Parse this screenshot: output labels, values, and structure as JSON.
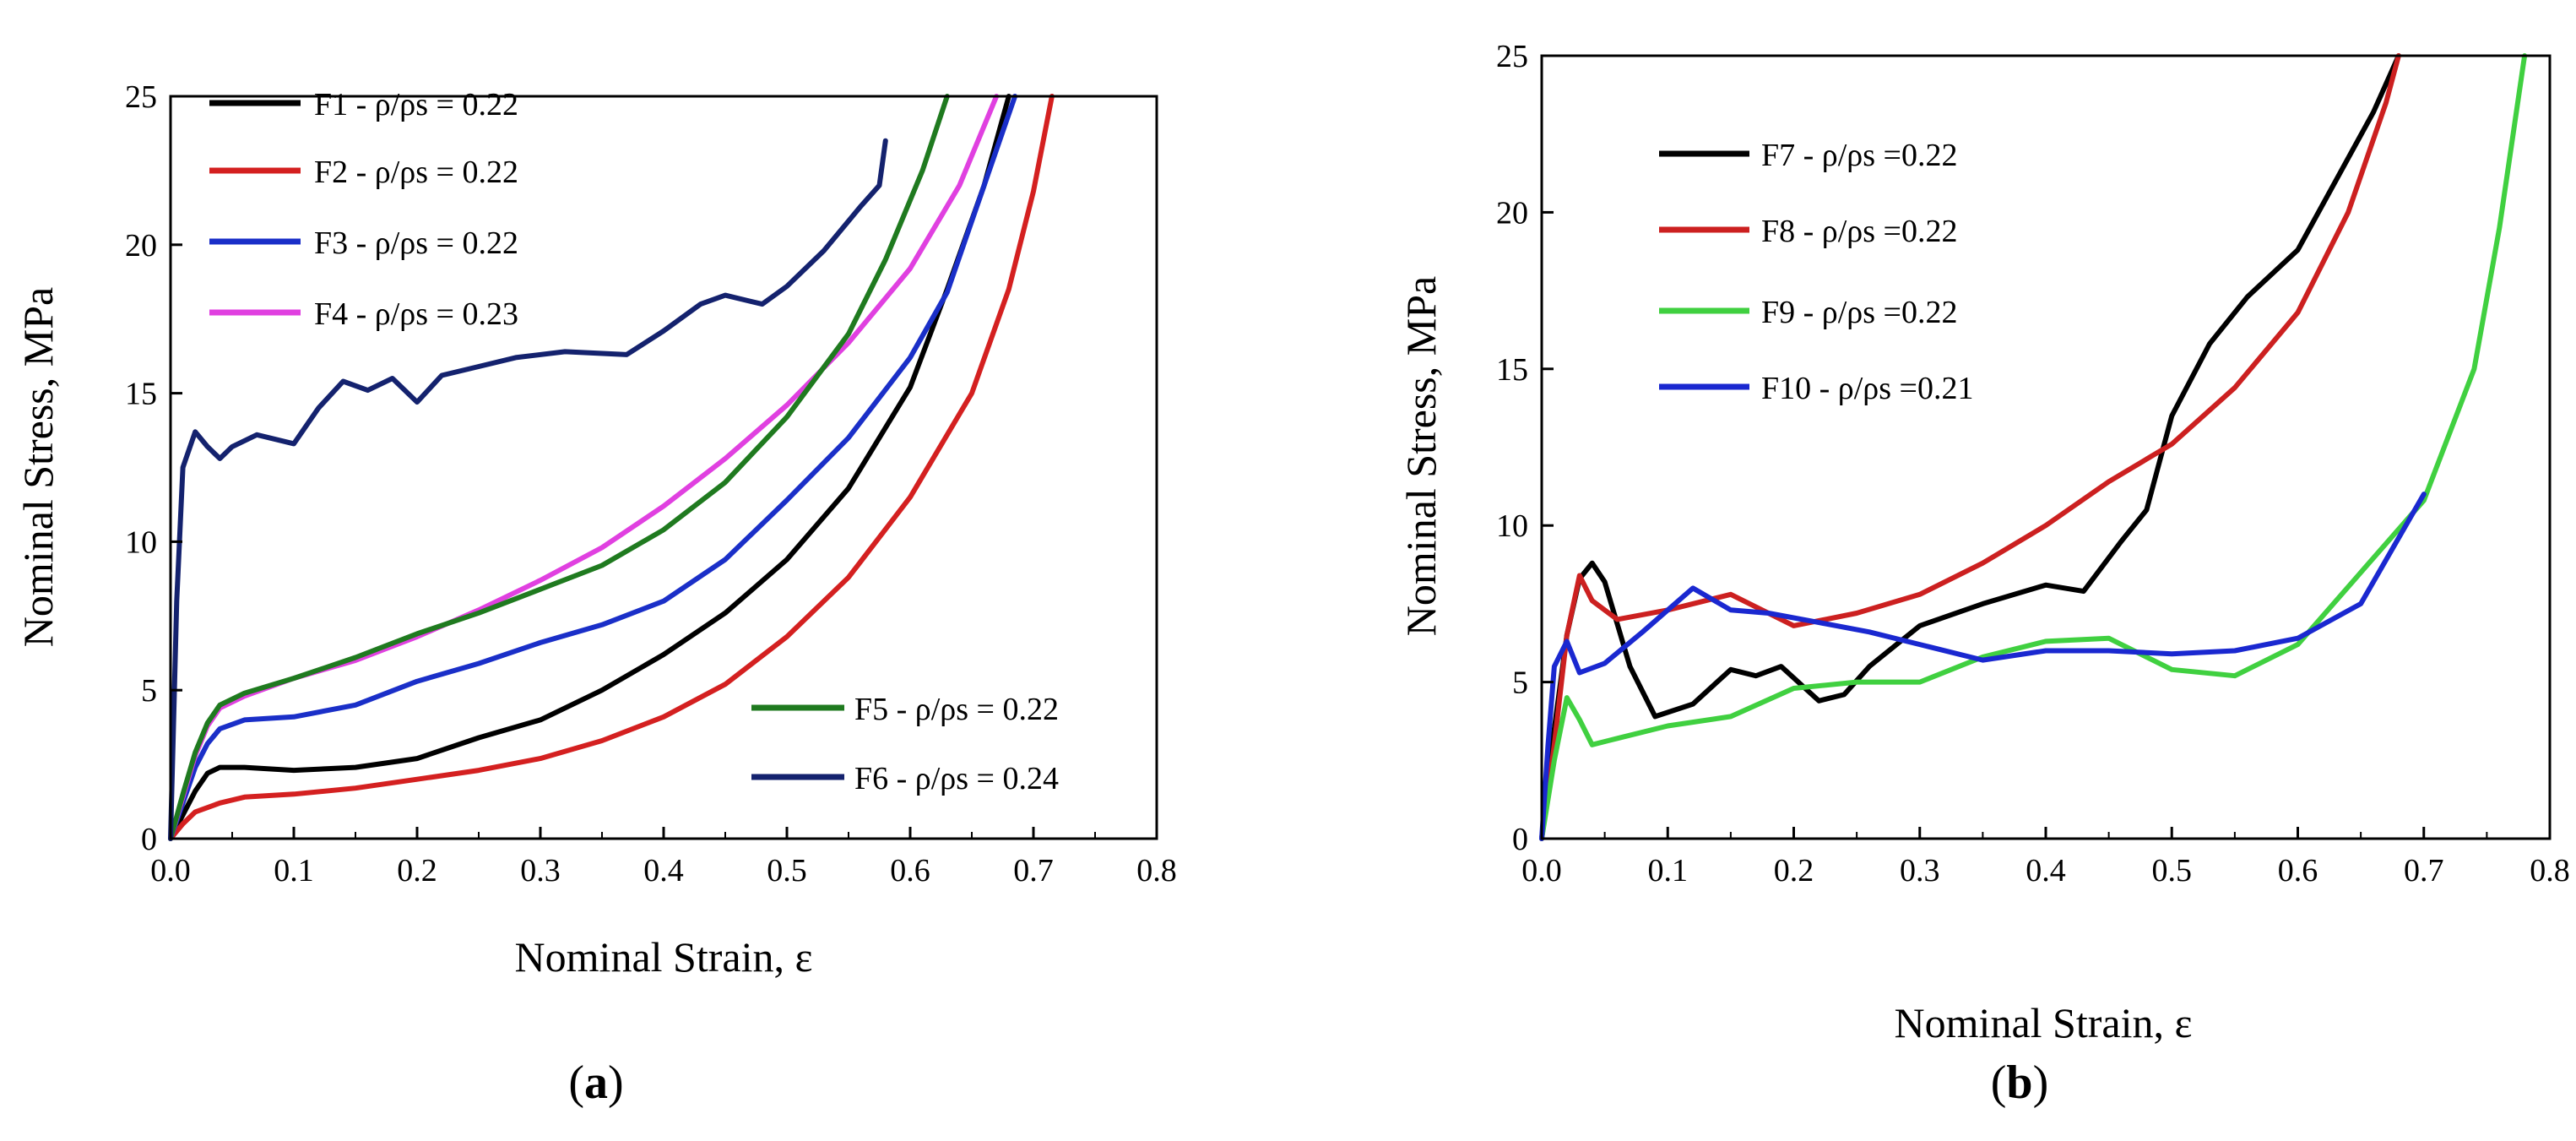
{
  "chart_data": [
    {
      "type": "line",
      "panel_label": "a",
      "xlabel": "Nominal Strain, ε",
      "ylabel": "Nominal Stress, MPa",
      "xlim": [
        0,
        0.8
      ],
      "ylim": [
        0,
        25
      ],
      "xticks": [
        "0.0",
        "0.1",
        "0.2",
        "0.3",
        "0.4",
        "0.5",
        "0.6",
        "0.7",
        "0.8"
      ],
      "yticks": [
        "0",
        "5",
        "10",
        "15",
        "20",
        "25"
      ],
      "series": [
        {
          "name": "F1 - ρ/ρs = 0.22",
          "color": "#000000",
          "legend": "upper",
          "points": [
            [
              0,
              0
            ],
            [
              0.01,
              0.8
            ],
            [
              0.02,
              1.6
            ],
            [
              0.03,
              2.2
            ],
            [
              0.04,
              2.4
            ],
            [
              0.06,
              2.4
            ],
            [
              0.1,
              2.3
            ],
            [
              0.15,
              2.4
            ],
            [
              0.2,
              2.7
            ],
            [
              0.25,
              3.4
            ],
            [
              0.3,
              4.0
            ],
            [
              0.35,
              5.0
            ],
            [
              0.4,
              6.2
            ],
            [
              0.45,
              7.6
            ],
            [
              0.5,
              9.4
            ],
            [
              0.55,
              11.8
            ],
            [
              0.6,
              15.2
            ],
            [
              0.63,
              18.5
            ],
            [
              0.66,
              22.0
            ],
            [
              0.68,
              25.0
            ]
          ]
        },
        {
          "name": "F2 - ρ/ρs = 0.22",
          "color": "#d42020",
          "legend": "upper",
          "points": [
            [
              0,
              0
            ],
            [
              0.01,
              0.5
            ],
            [
              0.02,
              0.9
            ],
            [
              0.04,
              1.2
            ],
            [
              0.06,
              1.4
            ],
            [
              0.1,
              1.5
            ],
            [
              0.15,
              1.7
            ],
            [
              0.2,
              2.0
            ],
            [
              0.25,
              2.3
            ],
            [
              0.3,
              2.7
            ],
            [
              0.35,
              3.3
            ],
            [
              0.4,
              4.1
            ],
            [
              0.45,
              5.2
            ],
            [
              0.5,
              6.8
            ],
            [
              0.55,
              8.8
            ],
            [
              0.6,
              11.5
            ],
            [
              0.65,
              15.0
            ],
            [
              0.68,
              18.5
            ],
            [
              0.7,
              21.8
            ],
            [
              0.715,
              25.0
            ]
          ]
        },
        {
          "name": "F3 - ρ/ρs = 0.22",
          "color": "#1a2fc8",
          "legend": "upper",
          "points": [
            [
              0,
              0
            ],
            [
              0.01,
              1.2
            ],
            [
              0.02,
              2.4
            ],
            [
              0.03,
              3.2
            ],
            [
              0.04,
              3.7
            ],
            [
              0.06,
              4.0
            ],
            [
              0.1,
              4.1
            ],
            [
              0.15,
              4.5
            ],
            [
              0.2,
              5.3
            ],
            [
              0.25,
              5.9
            ],
            [
              0.3,
              6.6
            ],
            [
              0.35,
              7.2
            ],
            [
              0.4,
              8.0
            ],
            [
              0.45,
              9.4
            ],
            [
              0.5,
              11.4
            ],
            [
              0.55,
              13.5
            ],
            [
              0.6,
              16.2
            ],
            [
              0.63,
              18.4
            ],
            [
              0.66,
              22.0
            ],
            [
              0.685,
              25.0
            ]
          ]
        },
        {
          "name": "F4 - ρ/ρs = 0.23",
          "color": "#e040e0",
          "legend": "upper",
          "points": [
            [
              0,
              0
            ],
            [
              0.01,
              1.4
            ],
            [
              0.02,
              2.8
            ],
            [
              0.03,
              3.8
            ],
            [
              0.04,
              4.4
            ],
            [
              0.06,
              4.8
            ],
            [
              0.1,
              5.4
            ],
            [
              0.15,
              6.0
            ],
            [
              0.2,
              6.8
            ],
            [
              0.25,
              7.7
            ],
            [
              0.3,
              8.7
            ],
            [
              0.35,
              9.8
            ],
            [
              0.4,
              11.2
            ],
            [
              0.45,
              12.8
            ],
            [
              0.5,
              14.6
            ],
            [
              0.55,
              16.7
            ],
            [
              0.6,
              19.2
            ],
            [
              0.64,
              22.0
            ],
            [
              0.67,
              25.0
            ]
          ]
        },
        {
          "name": "F5 - ρ/ρs = 0.22",
          "color": "#1f7a1f",
          "legend": "lower",
          "points": [
            [
              0,
              0
            ],
            [
              0.01,
              1.5
            ],
            [
              0.02,
              2.9
            ],
            [
              0.03,
              3.9
            ],
            [
              0.04,
              4.5
            ],
            [
              0.06,
              4.9
            ],
            [
              0.1,
              5.4
            ],
            [
              0.15,
              6.1
            ],
            [
              0.2,
              6.9
            ],
            [
              0.25,
              7.6
            ],
            [
              0.3,
              8.4
            ],
            [
              0.35,
              9.2
            ],
            [
              0.4,
              10.4
            ],
            [
              0.45,
              12.0
            ],
            [
              0.5,
              14.2
            ],
            [
              0.55,
              17.0
            ],
            [
              0.58,
              19.5
            ],
            [
              0.61,
              22.5
            ],
            [
              0.63,
              25.0
            ]
          ]
        },
        {
          "name": "F6 - ρ/ρs = 0.24",
          "color": "#14226e",
          "legend": "lower",
          "points": [
            [
              0,
              0
            ],
            [
              0.005,
              8.0
            ],
            [
              0.01,
              12.5
            ],
            [
              0.02,
              13.7
            ],
            [
              0.03,
              13.2
            ],
            [
              0.04,
              12.8
            ],
            [
              0.05,
              13.2
            ],
            [
              0.07,
              13.6
            ],
            [
              0.1,
              13.3
            ],
            [
              0.12,
              14.5
            ],
            [
              0.14,
              15.4
            ],
            [
              0.16,
              15.1
            ],
            [
              0.18,
              15.5
            ],
            [
              0.2,
              14.7
            ],
            [
              0.22,
              15.6
            ],
            [
              0.25,
              15.9
            ],
            [
              0.28,
              16.2
            ],
            [
              0.32,
              16.4
            ],
            [
              0.37,
              16.3
            ],
            [
              0.4,
              17.1
            ],
            [
              0.43,
              18.0
            ],
            [
              0.45,
              18.3
            ],
            [
              0.48,
              18.0
            ],
            [
              0.5,
              18.6
            ],
            [
              0.53,
              19.8
            ],
            [
              0.56,
              21.3
            ],
            [
              0.575,
              22.0
            ],
            [
              0.58,
              23.5
            ]
          ]
        }
      ]
    },
    {
      "type": "line",
      "panel_label": "b",
      "xlabel": "Nominal Strain, ε",
      "ylabel": "Nominal Stress, MPa",
      "xlim": [
        0,
        0.8
      ],
      "ylim": [
        0,
        25
      ],
      "xticks": [
        "0.0",
        "0.1",
        "0.2",
        "0.3",
        "0.4",
        "0.5",
        "0.6",
        "0.7",
        "0.8"
      ],
      "yticks": [
        "0",
        "5",
        "10",
        "15",
        "20",
        "25"
      ],
      "series": [
        {
          "name": "F7 - ρ/ρs =0.22",
          "color": "#000000",
          "points": [
            [
              0,
              0
            ],
            [
              0.01,
              3.5
            ],
            [
              0.02,
              6.5
            ],
            [
              0.03,
              8.3
            ],
            [
              0.04,
              8.8
            ],
            [
              0.05,
              8.2
            ],
            [
              0.07,
              5.5
            ],
            [
              0.09,
              3.9
            ],
            [
              0.12,
              4.3
            ],
            [
              0.15,
              5.4
            ],
            [
              0.17,
              5.2
            ],
            [
              0.19,
              5.5
            ],
            [
              0.22,
              4.4
            ],
            [
              0.24,
              4.6
            ],
            [
              0.26,
              5.5
            ],
            [
              0.3,
              6.8
            ],
            [
              0.35,
              7.5
            ],
            [
              0.4,
              8.1
            ],
            [
              0.43,
              7.9
            ],
            [
              0.46,
              9.5
            ],
            [
              0.48,
              10.5
            ],
            [
              0.5,
              13.5
            ],
            [
              0.53,
              15.8
            ],
            [
              0.56,
              17.3
            ],
            [
              0.6,
              18.8
            ],
            [
              0.63,
              21.0
            ],
            [
              0.66,
              23.2
            ],
            [
              0.68,
              25.0
            ]
          ]
        },
        {
          "name": "F8 - ρ/ρs =0.22",
          "color": "#cc2020",
          "points": [
            [
              0,
              0
            ],
            [
              0.01,
              3.0
            ],
            [
              0.02,
              6.5
            ],
            [
              0.03,
              8.4
            ],
            [
              0.04,
              7.6
            ],
            [
              0.06,
              7.0
            ],
            [
              0.1,
              7.3
            ],
            [
              0.15,
              7.8
            ],
            [
              0.2,
              6.8
            ],
            [
              0.25,
              7.2
            ],
            [
              0.3,
              7.8
            ],
            [
              0.35,
              8.8
            ],
            [
              0.4,
              10.0
            ],
            [
              0.45,
              11.4
            ],
            [
              0.5,
              12.6
            ],
            [
              0.55,
              14.4
            ],
            [
              0.6,
              16.8
            ],
            [
              0.64,
              20.0
            ],
            [
              0.67,
              23.5
            ],
            [
              0.68,
              25.0
            ]
          ]
        },
        {
          "name": "F9 - ρ/ρs =0.22",
          "color": "#40d040",
          "points": [
            [
              0,
              0
            ],
            [
              0.01,
              2.5
            ],
            [
              0.02,
              4.5
            ],
            [
              0.03,
              3.8
            ],
            [
              0.04,
              3.0
            ],
            [
              0.06,
              3.2
            ],
            [
              0.1,
              3.6
            ],
            [
              0.15,
              3.9
            ],
            [
              0.2,
              4.8
            ],
            [
              0.25,
              5.0
            ],
            [
              0.3,
              5.0
            ],
            [
              0.35,
              5.8
            ],
            [
              0.4,
              6.3
            ],
            [
              0.45,
              6.4
            ],
            [
              0.5,
              5.4
            ],
            [
              0.55,
              5.2
            ],
            [
              0.6,
              6.2
            ],
            [
              0.65,
              8.5
            ],
            [
              0.7,
              10.8
            ],
            [
              0.74,
              15.0
            ],
            [
              0.76,
              19.5
            ],
            [
              0.78,
              25.0
            ]
          ]
        },
        {
          "name": "F10 - ρ/ρs =0.21",
          "color": "#1a28d0",
          "points": [
            [
              0,
              0
            ],
            [
              0.005,
              3.0
            ],
            [
              0.01,
              5.5
            ],
            [
              0.02,
              6.3
            ],
            [
              0.03,
              5.3
            ],
            [
              0.05,
              5.6
            ],
            [
              0.08,
              6.6
            ],
            [
              0.12,
              8.0
            ],
            [
              0.15,
              7.3
            ],
            [
              0.18,
              7.2
            ],
            [
              0.22,
              6.9
            ],
            [
              0.26,
              6.6
            ],
            [
              0.3,
              6.2
            ],
            [
              0.35,
              5.7
            ],
            [
              0.4,
              6.0
            ],
            [
              0.45,
              6.0
            ],
            [
              0.5,
              5.9
            ],
            [
              0.55,
              6.0
            ],
            [
              0.6,
              6.4
            ],
            [
              0.65,
              7.5
            ],
            [
              0.7,
              11.0
            ]
          ]
        }
      ]
    }
  ]
}
